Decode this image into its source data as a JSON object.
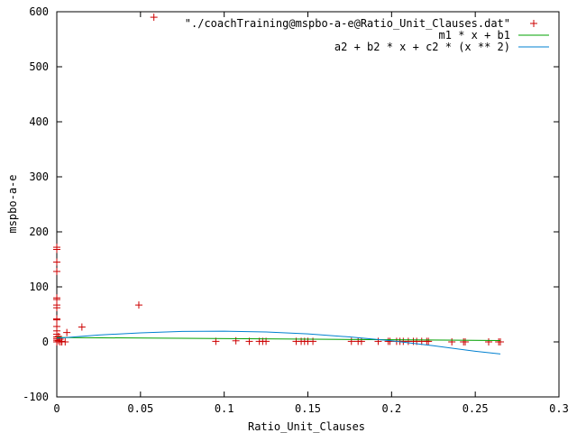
{
  "chart_data": {
    "type": "scatter",
    "title": "",
    "xlabel": "Ratio_Unit_Clauses",
    "ylabel": "mspbo-a-e",
    "xlim": [
      0,
      0.3
    ],
    "ylim": [
      -100,
      600
    ],
    "xticks": [
      "0",
      "0.05",
      "0.1",
      "0.15",
      "0.2",
      "0.25",
      "0.3"
    ],
    "yticks": [
      "-100",
      "0",
      "100",
      "200",
      "300",
      "400",
      "500",
      "600"
    ],
    "legend_position": "top-right",
    "grid": false,
    "series": [
      {
        "name": "\"./coachTraining@mspbo-a-e@Ratio_Unit_Clauses.dat\"",
        "kind": "points",
        "color": "#cc0000",
        "points": [
          [
            0.058,
            590
          ],
          [
            0.049,
            67
          ],
          [
            0.015,
            27
          ],
          [
            0.006,
            17
          ],
          [
            0.005,
            0
          ],
          [
            0.0,
            172
          ],
          [
            0.0,
            168
          ],
          [
            0.0,
            145
          ],
          [
            0.0,
            128
          ],
          [
            0.0,
            80
          ],
          [
            0.0,
            77
          ],
          [
            0.0,
            67
          ],
          [
            0.0,
            62
          ],
          [
            0.0,
            42
          ],
          [
            0.0,
            40
          ],
          [
            0.0,
            28
          ],
          [
            0.0,
            20
          ],
          [
            0.0,
            14
          ],
          [
            0.0,
            9
          ],
          [
            0.0,
            6
          ],
          [
            0.0,
            3
          ],
          [
            0.0,
            0
          ],
          [
            0.001,
            10
          ],
          [
            0.001,
            2
          ],
          [
            0.002,
            5
          ],
          [
            0.002,
            0
          ],
          [
            0.003,
            1
          ],
          [
            0.003,
            0
          ],
          [
            0.095,
            1
          ],
          [
            0.107,
            2
          ],
          [
            0.115,
            1
          ],
          [
            0.121,
            1
          ],
          [
            0.123,
            1
          ],
          [
            0.125,
            1
          ],
          [
            0.143,
            1
          ],
          [
            0.146,
            1
          ],
          [
            0.148,
            1
          ],
          [
            0.15,
            1
          ],
          [
            0.153,
            1
          ],
          [
            0.176,
            1
          ],
          [
            0.18,
            1
          ],
          [
            0.182,
            1
          ],
          [
            0.192,
            1
          ],
          [
            0.198,
            1
          ],
          [
            0.199,
            1
          ],
          [
            0.203,
            1
          ],
          [
            0.205,
            1
          ],
          [
            0.207,
            1
          ],
          [
            0.21,
            1
          ],
          [
            0.213,
            1
          ],
          [
            0.215,
            1
          ],
          [
            0.218,
            1
          ],
          [
            0.221,
            1
          ],
          [
            0.222,
            1
          ],
          [
            0.236,
            0
          ],
          [
            0.243,
            0
          ],
          [
            0.244,
            0
          ],
          [
            0.258,
            0
          ],
          [
            0.264,
            0
          ],
          [
            0.265,
            0
          ]
        ]
      },
      {
        "name": "m1 * x + b1",
        "kind": "line",
        "color": "#00a000",
        "points": [
          [
            0.0,
            8.0
          ],
          [
            0.265,
            2.5
          ]
        ]
      },
      {
        "name": "a2 + b2 * x + c2 * (x ** 2)",
        "kind": "line",
        "color": "#0080d0",
        "points": [
          [
            0.0,
            6.5
          ],
          [
            0.025,
            12.5
          ],
          [
            0.05,
            16.5
          ],
          [
            0.075,
            19
          ],
          [
            0.1,
            19.5
          ],
          [
            0.125,
            18
          ],
          [
            0.15,
            14.5
          ],
          [
            0.175,
            9
          ],
          [
            0.2,
            2
          ],
          [
            0.225,
            -7
          ],
          [
            0.25,
            -17
          ],
          [
            0.265,
            -22
          ]
        ]
      }
    ]
  }
}
